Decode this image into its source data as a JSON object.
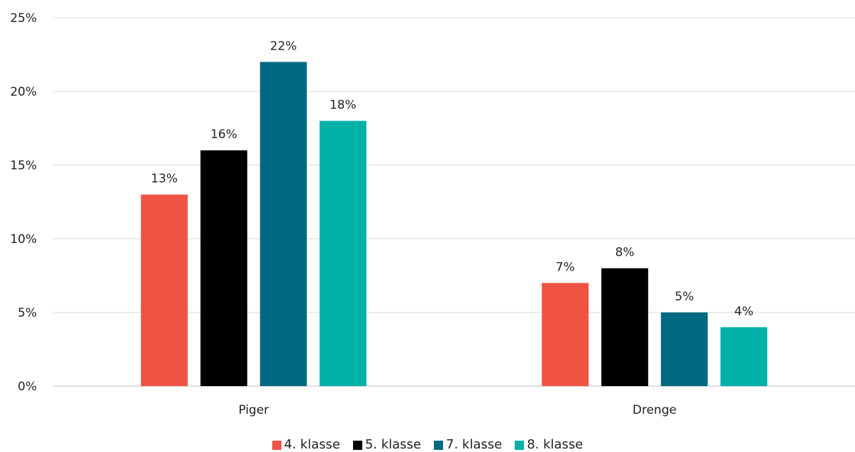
{
  "chart_data": {
    "type": "bar",
    "title": "",
    "xlabel": "",
    "ylabel": "",
    "categories": [
      "Piger",
      "Drenge"
    ],
    "ylim": [
      0,
      25
    ],
    "yticks": [
      0,
      5,
      10,
      15,
      20,
      25
    ],
    "ytick_labels": [
      "0%",
      "5%",
      "10%",
      "15%",
      "20%",
      "25%"
    ],
    "value_suffix": "%",
    "grid": true,
    "legend_position": "bottom",
    "series": [
      {
        "name": "4. klasse",
        "color": "#ef5343",
        "values": [
          13,
          7
        ]
      },
      {
        "name": "5. klasse",
        "color": "#000000",
        "values": [
          16,
          8
        ]
      },
      {
        "name": "7. klasse",
        "color": "#006a80",
        "values": [
          22,
          5
        ]
      },
      {
        "name": "8. klasse",
        "color": "#00b1a9",
        "values": [
          18,
          4
        ]
      }
    ]
  }
}
